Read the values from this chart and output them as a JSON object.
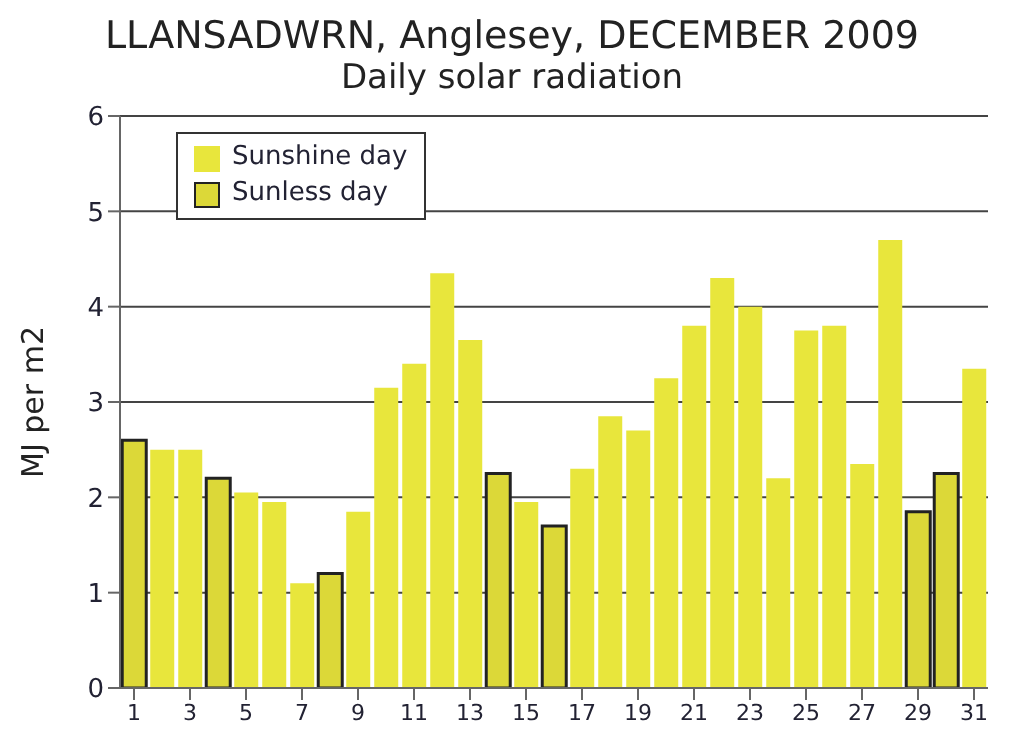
{
  "chart_data": {
    "type": "bar",
    "title": "LLANSADWRN, Anglesey, DECEMBER 2009",
    "subtitle": "Daily solar radiation",
    "ylabel": "MJ per m2",
    "x": [
      1,
      2,
      3,
      4,
      5,
      6,
      7,
      8,
      9,
      10,
      11,
      12,
      13,
      14,
      15,
      16,
      17,
      18,
      19,
      20,
      21,
      22,
      23,
      24,
      25,
      26,
      27,
      28,
      29,
      30,
      31
    ],
    "xlim": [
      0.5,
      31.5
    ],
    "xticks": [
      1,
      3,
      5,
      7,
      9,
      11,
      13,
      15,
      17,
      19,
      21,
      23,
      25,
      27,
      29,
      31
    ],
    "stacked": true,
    "ylim": [
      0,
      6
    ],
    "yticks": [
      0,
      1,
      2,
      3,
      4,
      5,
      6
    ],
    "grid": "y",
    "legend": "top left",
    "series": [
      {
        "name": "Sunshine day",
        "color": "#e8e63c",
        "values": [
          null,
          2.5,
          2.5,
          null,
          2.05,
          1.95,
          1.1,
          null,
          1.85,
          3.15,
          3.4,
          4.35,
          3.65,
          null,
          1.95,
          null,
          2.3,
          2.85,
          2.7,
          3.25,
          3.8,
          4.3,
          4.0,
          2.2,
          3.75,
          3.8,
          2.35,
          4.7,
          null,
          null,
          3.35
        ]
      },
      {
        "name": "Sunless day",
        "color": "#dcd838",
        "values": [
          2.6,
          null,
          null,
          2.2,
          null,
          null,
          null,
          1.2,
          null,
          null,
          null,
          null,
          null,
          2.25,
          null,
          1.7,
          null,
          null,
          null,
          null,
          null,
          null,
          null,
          null,
          null,
          null,
          null,
          null,
          1.85,
          2.25,
          null
        ]
      }
    ]
  }
}
